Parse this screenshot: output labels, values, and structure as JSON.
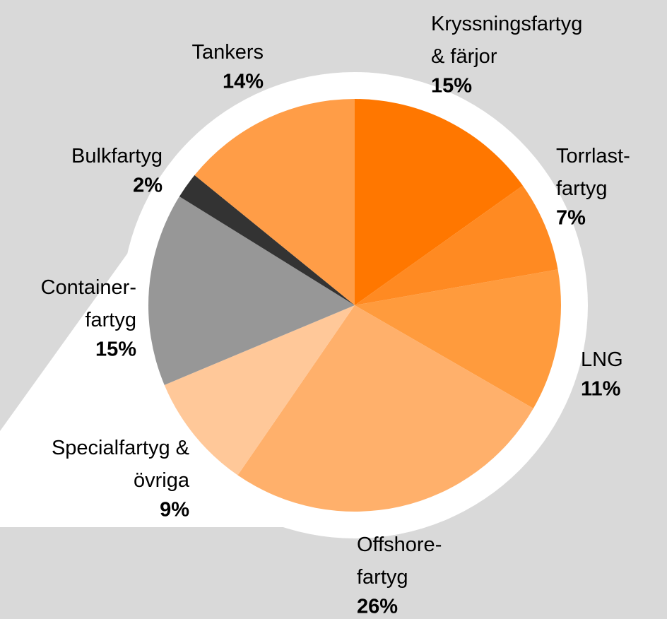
{
  "chart_data": {
    "type": "pie",
    "categories": [
      "Kryssningsfartyg\n& färjor",
      "Torrlast-\nfartyg",
      "LNG",
      "Offshore-\nfartyg",
      "Specialfartyg &\növriga",
      "Container-\nfartyg",
      "Bulkfartyg",
      "Tankers"
    ],
    "values": [
      15,
      7,
      11,
      26,
      9,
      15,
      2,
      14
    ],
    "value_labels": [
      "15%",
      "7%",
      "11%",
      "26%",
      "9%",
      "15%",
      "2%",
      "14%"
    ],
    "colors": [
      "#ff7700",
      "#ff8a22",
      "#ff9b3d",
      "#ffb06b",
      "#ffc899",
      "#979797",
      "#333333",
      "#ff9d47"
    ]
  }
}
